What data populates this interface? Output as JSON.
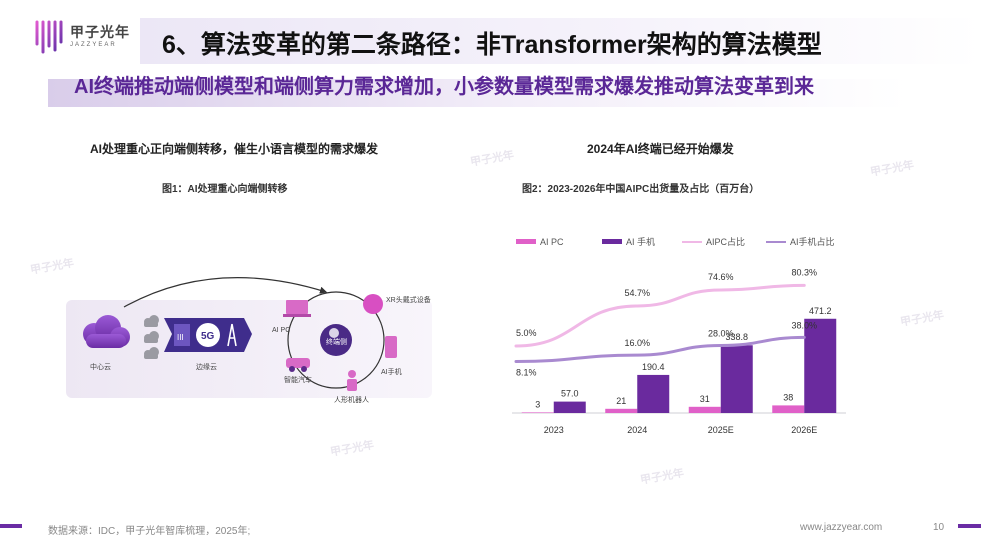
{
  "logo": {
    "name_cn": "甲子光年",
    "name_en": "JAZZYEAR"
  },
  "header": {
    "title": "6、算法变革的第二条路径：非Transformer架构的算法模型",
    "subtitle": "AI终端推动端侧模型和端侧算力需求增加，小参数量模型需求爆发推动算法变革到来"
  },
  "left_panel": {
    "heading": "AI处理重心正向端侧转移，催生小语言模型的需求爆发",
    "figure_caption": "图1：AI处理重心向端侧转移",
    "diagram": {
      "cloud_label": "中心云",
      "edge_label": "边缘云",
      "network_label": "5G",
      "hub_label": "终端侧",
      "devices": [
        "XR头戴式设备",
        "AI PC",
        "AI手机",
        "智能汽车",
        "人形机器人"
      ]
    }
  },
  "right_panel": {
    "heading": "2024年AI终端已经开始爆发",
    "figure_caption": "图2：2023-2026年中国AIPC出货量及占比（百万台）"
  },
  "chart_data": {
    "type": "bar",
    "title": "2023-2026年中国AIPC出货量及占比（百万台）",
    "categories": [
      "2023",
      "2024",
      "2025E",
      "2026E"
    ],
    "series": [
      {
        "name": "AI PC",
        "kind": "bar",
        "color": "#e060c8",
        "values": [
          3,
          21,
          31,
          38
        ],
        "labels": [
          "3",
          "21",
          "31",
          "38"
        ]
      },
      {
        "name": "AI 手机",
        "kind": "bar",
        "color": "#6a2a9e",
        "values": [
          57.0,
          190.4,
          338.8,
          471.2
        ],
        "labels": [
          "57.0",
          "190.4",
          "338.8",
          "471.2"
        ]
      },
      {
        "name": "AIPC占比",
        "kind": "line",
        "color": "#f0b8e6",
        "values": [
          5.0,
          54.7,
          74.6,
          80.3
        ],
        "labels": [
          "5.0%",
          "54.7%",
          "74.6%",
          "80.3%"
        ]
      },
      {
        "name": "AI手机占比",
        "kind": "line",
        "color": "#a98ad0",
        "values": [
          8.1,
          16.0,
          28.0,
          38.0
        ],
        "labels": [
          "8.1%",
          "16.0%",
          "28.0%",
          "38.0%"
        ]
      }
    ],
    "ylim": [
      0,
      500
    ],
    "y2lim": [
      0,
      100
    ]
  },
  "footer": {
    "source": "数据来源：IDC，甲子光年智库梳理，2025年;",
    "website": "www.jazzyear.com",
    "page_number": "10"
  },
  "colors": {
    "brand": "#6a2ca4",
    "accent_pink": "#e060c8"
  },
  "watermark": "甲子光年"
}
